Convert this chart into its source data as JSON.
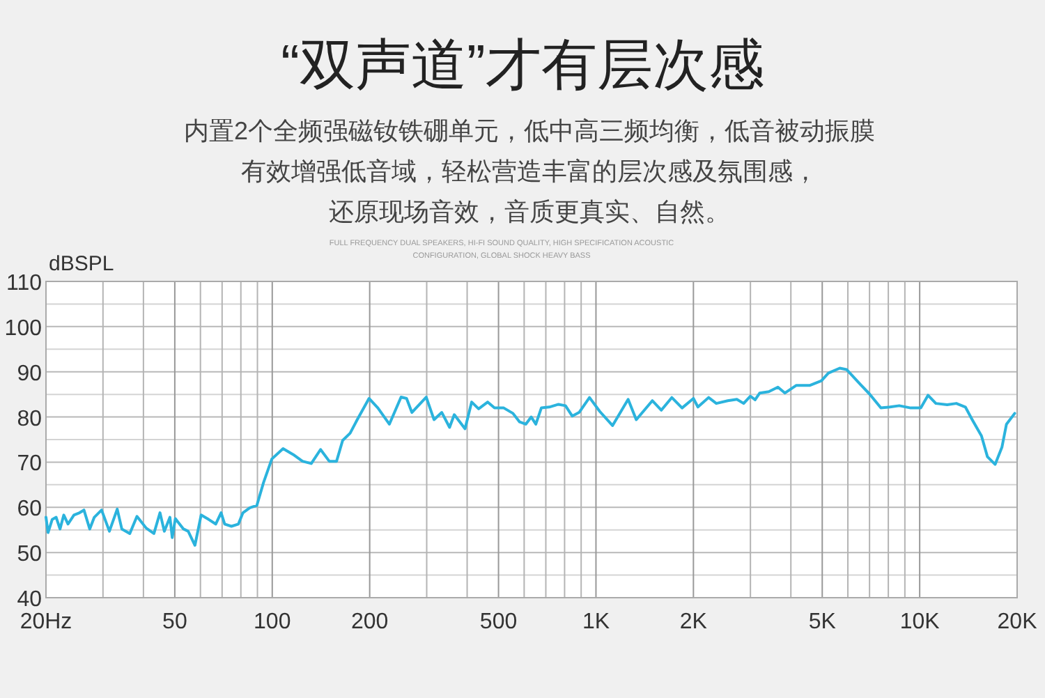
{
  "chart_data": {
    "type": "line",
    "title": "“双声道”才有层次感",
    "subtitle": "内置2个全频强磁钕铁硼单元，低中高三频均衡，低音被动振膜",
    "annotations": [
      "有效增强低音域，轻松营造丰富的层次感及氛围感，",
      "还原现场音效，音质更真实、自然。",
      "FULL FREQUENCY DUAL SPEAKERS, HI-FI SOUND QUALITY, HIGH SPECIFICATION ACOUSTIC",
      "CONFIGURATION, GLOBAL SHOCK HEAVY BASS"
    ],
    "ylabel": "dBSPL",
    "x": [
      20,
      20.3,
      20.9,
      21.5,
      22.1,
      22.7,
      23.4,
      24.4,
      25.4,
      26.2,
      27.3,
      28.2,
      29.7,
      31.4,
      33.2,
      34.3,
      36.3,
      38.2,
      40.8,
      43.1,
      45,
      46.4,
      48.3,
      49.1,
      50.2,
      53.2,
      55,
      57.7,
      60.3,
      63.7,
      66.9,
      69.5,
      71.3,
      74.8,
      78.6,
      81.2,
      85.3,
      89.6,
      94,
      99.7,
      108,
      116,
      124,
      132,
      141,
      150,
      158,
      165,
      174,
      183,
      199,
      212,
      230,
      250,
      260,
      270,
      299,
      316,
      334,
      353,
      365,
      394,
      413,
      434,
      463,
      486,
      519,
      554,
      581,
      607,
      631,
      652,
      678,
      718,
      766,
      805,
      845,
      887,
      955,
      1028,
      1125,
      1257,
      1332,
      1493,
      1592,
      1715,
      1845,
      2000,
      2065,
      2228,
      2354,
      2553,
      2724,
      2859,
      3000,
      3102,
      3206,
      3419,
      3648,
      3836,
      4160,
      4584,
      4970,
      5222,
      5664,
      5944,
      6559,
      6997,
      7588,
      8093,
      8648,
      9380,
      10080,
      10610,
      11220,
      12160,
      12980,
      13840,
      14530,
      15520,
      16190,
      17100,
      17950,
      18540,
      19660
    ],
    "series": [
      {
        "color": "#2bb3dd",
        "values": [
          57.8,
          54.4,
          57.3,
          57.8,
          55.2,
          58.3,
          56.3,
          58.3,
          58.8,
          59.4,
          55.2,
          57.8,
          59.4,
          54.7,
          59.6,
          55.2,
          54.2,
          58.0,
          55.4,
          54.2,
          58.8,
          54.7,
          57.8,
          53.3,
          57.5,
          55.2,
          54.7,
          51.6,
          58.3,
          57.3,
          56.3,
          58.8,
          56.3,
          55.8,
          56.3,
          58.8,
          59.9,
          60.4,
          65.5,
          70.7,
          73.0,
          71.7,
          70.2,
          69.7,
          72.8,
          70.2,
          70.2,
          74.8,
          76.4,
          79.4,
          84.1,
          82.0,
          78.4,
          84.4,
          84.1,
          81.0,
          84.4,
          79.4,
          81.0,
          77.7,
          80.5,
          77.4,
          83.3,
          81.8,
          83.3,
          82.0,
          82.0,
          80.8,
          78.9,
          78.4,
          80.0,
          78.4,
          82.0,
          82.2,
          82.8,
          82.5,
          80.2,
          81.0,
          84.3,
          81.2,
          78.1,
          83.9,
          79.4,
          83.6,
          81.5,
          84.3,
          82.0,
          84.1,
          82.2,
          84.3,
          83.0,
          83.6,
          83.9,
          83.0,
          84.6,
          83.8,
          85.3,
          85.6,
          86.6,
          85.3,
          87.0,
          87.0,
          88.0,
          89.7,
          90.8,
          90.5,
          87.2,
          85.1,
          82.0,
          82.2,
          82.5,
          82.0,
          82.0,
          84.8,
          83.0,
          82.7,
          83.0,
          82.2,
          79.4,
          75.8,
          71.2,
          69.5,
          73.3,
          78.4,
          80.8
        ]
      }
    ],
    "log": "x",
    "xlim": [
      20,
      20000
    ],
    "xticks": [
      {
        "value": 20,
        "label": "20Hz"
      },
      {
        "value": 30,
        "label": null
      },
      {
        "value": 40,
        "label": null
      },
      50,
      {
        "value": 60,
        "label": null
      },
      {
        "value": 70,
        "label": null
      },
      {
        "value": 80,
        "label": null
      },
      {
        "value": 90,
        "label": null
      },
      100,
      200,
      {
        "value": 300,
        "label": null
      },
      {
        "value": 400,
        "label": null
      },
      500,
      {
        "value": 600,
        "label": null
      },
      {
        "value": 700,
        "label": null
      },
      {
        "value": 800,
        "label": null
      },
      {
        "value": 900,
        "label": null
      },
      {
        "value": 1000,
        "label": "1K"
      },
      {
        "value": 2000,
        "label": "2K"
      },
      {
        "value": 3000,
        "label": null
      },
      {
        "value": 4000,
        "label": null
      },
      {
        "value": 5000,
        "label": "5K"
      },
      {
        "value": 6000,
        "label": null
      },
      {
        "value": 7000,
        "label": null
      },
      {
        "value": 8000,
        "label": null
      },
      {
        "value": 9000,
        "label": null
      },
      {
        "value": 10000,
        "label": "10K"
      },
      {
        "value": 20000,
        "label": "20K"
      }
    ],
    "ylim": [
      40,
      110
    ],
    "yticks": [
      40,
      {
        "value": 45,
        "label": null
      },
      50,
      {
        "value": 55,
        "label": null
      },
      60,
      {
        "value": 65,
        "label": null
      },
      70,
      {
        "value": 75,
        "label": null
      },
      80,
      {
        "value": 85,
        "label": null
      },
      90,
      {
        "value": 95,
        "label": null
      },
      100,
      {
        "value": 105,
        "label": null
      },
      110
    ],
    "grid": true,
    "line_style": "solid"
  }
}
